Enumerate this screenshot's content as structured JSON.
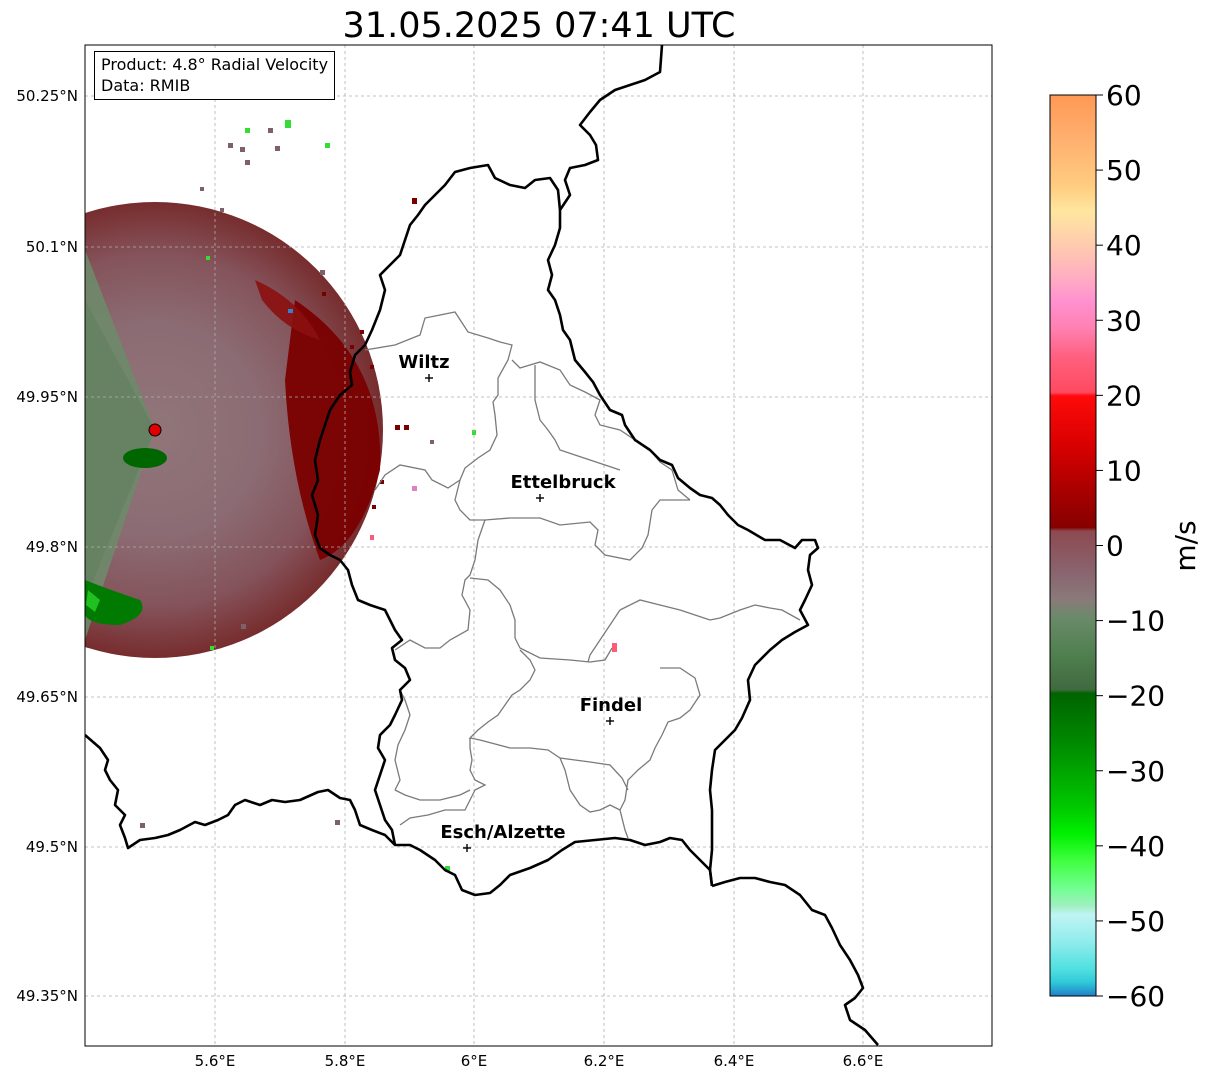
{
  "title": "31.05.2025 07:41 UTC",
  "info": {
    "product": "Product: 4.8° Radial Velocity",
    "data": "Data: RMIB"
  },
  "axes": {
    "lon_ticks": [
      "5.6°E",
      "5.8°E",
      "6°E",
      "6.2°E",
      "6.4°E",
      "6.6°E"
    ],
    "lat_ticks": [
      "50.25°N",
      "50.1°N",
      "49.95°N",
      "49.8°N",
      "49.65°N",
      "49.5°N",
      "49.35°N"
    ]
  },
  "cities": [
    {
      "name": "Wiltz",
      "lon": 5.93,
      "lat": 49.97
    },
    {
      "name": "Ettelbruck",
      "lon": 6.1,
      "lat": 49.85
    },
    {
      "name": "Findel",
      "lon": 6.21,
      "lat": 49.63
    },
    {
      "name": "Esch/Alzette",
      "lon": 5.99,
      "lat": 49.5
    }
  ],
  "colorbar": {
    "label": "m/s",
    "ticks": [
      "60",
      "50",
      "40",
      "30",
      "20",
      "10",
      "0",
      "−10",
      "−20",
      "−30",
      "−40",
      "−50",
      "−60"
    ],
    "min": -60,
    "max": 60
  },
  "colors": {
    "outward_strong": "#7a0000",
    "inward_strong": "#006600",
    "near_zero_pos": "#8a6a6e",
    "near_zero_neg": "#6a8a66",
    "radar_site": "#e00000"
  }
}
